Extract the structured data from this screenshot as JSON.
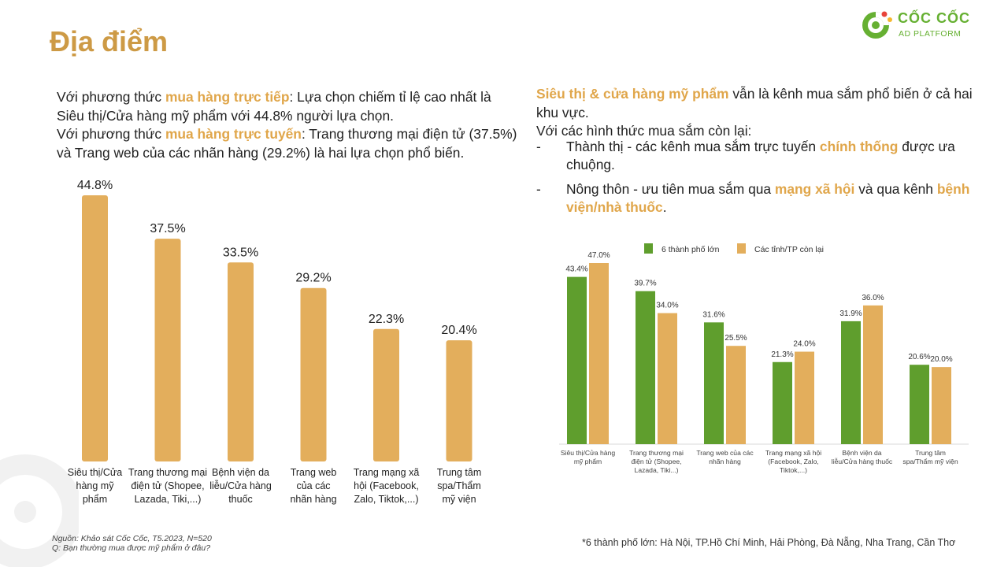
{
  "page": {
    "title": "Địa điểm",
    "logo": {
      "name": "CỐC CỐC",
      "sub": "AD PLATFORM"
    },
    "left_text": {
      "p1_a": "Với phương thức ",
      "p1_hl": "mua hàng trực tiếp",
      "p1_b": ": Lựa chọn chiếm tỉ lệ cao nhất là Siêu thị/Cửa hàng mỹ phẩm với 44.8% người lựa chọn.",
      "p2_a": "Với phương thức ",
      "p2_hl": "mua hàng trực tuyến",
      "p2_b": ": Trang thương mại điện tử (37.5%) và Trang web của các nhãn hàng (29.2%) là hai lựa chọn phổ biến."
    },
    "right_text": {
      "p1_hl": "Siêu thị & cửa hàng mỹ phẩm",
      "p1_b": " vẫn là kênh mua sắm phổ biến ở cả hai khu vực.",
      "p2": "Với các hình thức mua sắm còn lại:",
      "b1_a": "Thành thị - các kênh mua sắm trực tuyến ",
      "b1_hl": "chính thống",
      "b1_b": " được ưa chuộng.",
      "b2_a": "Nông thôn - ưu tiên mua sắm qua ",
      "b2_hl1": "mạng xã hội",
      "b2_b": " và qua kênh ",
      "b2_hl2": "bệnh viện/nhà thuốc",
      "b2_c": "."
    },
    "source_line1": "Nguồn: Khảo sát Cốc Cốc, T5.2023, N=520",
    "source_line2": "Q: Bạn thường mua được mỹ phẩm ở đâu?",
    "footnote": "*6 thành phố lớn: Hà Nội, TP.Hồ Chí Minh, Hải Phòng, Đà Nẵng, Nha Trang, Cần Thơ",
    "colors": {
      "accent": "#e0a64a",
      "bar_gold": "#e3ae5c",
      "bar_green": "#5f9e2d",
      "title": "#cd9a45"
    }
  },
  "chart_data": [
    {
      "type": "bar",
      "categories": [
        [
          "Siêu thị/Cửa",
          "hàng mỹ",
          "phẩm"
        ],
        [
          "Trang thương mại",
          "điện tử (Shopee,",
          "Lazada, Tiki,...)"
        ],
        [
          "Bệnh viện da",
          "liễu/Cửa hàng",
          "thuốc"
        ],
        [
          "Trang web",
          "của các",
          "nhãn hàng"
        ],
        [
          "Trang mạng xã",
          "hội (Facebook,",
          "Zalo, Tiktok,...)"
        ],
        [
          "Trung tâm",
          "spa/Thẩm",
          "mỹ viện"
        ]
      ],
      "values": [
        44.8,
        37.5,
        33.5,
        29.2,
        22.3,
        20.4
      ],
      "value_labels": [
        "44.8%",
        "37.5%",
        "33.5%",
        "29.2%",
        "22.3%",
        "20.4%"
      ],
      "ylim": [
        0,
        44.8
      ]
    },
    {
      "type": "bar",
      "categories": [
        [
          "Siêu thị/Cửa hàng",
          "mỹ phẩm"
        ],
        [
          "Trang thương mại",
          "điện tử (Shopee,",
          "Lazada, Tiki...)"
        ],
        [
          "Trang web của các",
          "nhãn hàng"
        ],
        [
          "Trang mạng xã hội",
          "(Facebook, Zalo,",
          "Tiktok,...)"
        ],
        [
          "Bệnh viện da",
          "liễu/Cửa hàng thuốc"
        ],
        [
          "Trung tâm",
          "spa/Thẩm mỹ viện"
        ]
      ],
      "series": [
        {
          "name": "6 thành phố lớn",
          "color": "#5f9e2d",
          "values": [
            43.4,
            39.7,
            31.6,
            21.3,
            31.9,
            20.6
          ],
          "value_labels": [
            "43.4%",
            "39.7%",
            "31.6%",
            "21.3%",
            "31.9%",
            "20.6%"
          ]
        },
        {
          "name": "Các tỉnh/TP còn lại",
          "color": "#e3ae5c",
          "values": [
            47.0,
            34.0,
            25.5,
            24.0,
            36.0,
            20.0
          ],
          "value_labels": [
            "47.0%",
            "34.0%",
            "25.5%",
            "24.0%",
            "36.0%",
            "20.0%"
          ]
        }
      ],
      "legend": "top-center",
      "ylim": [
        0,
        47.0
      ]
    }
  ]
}
